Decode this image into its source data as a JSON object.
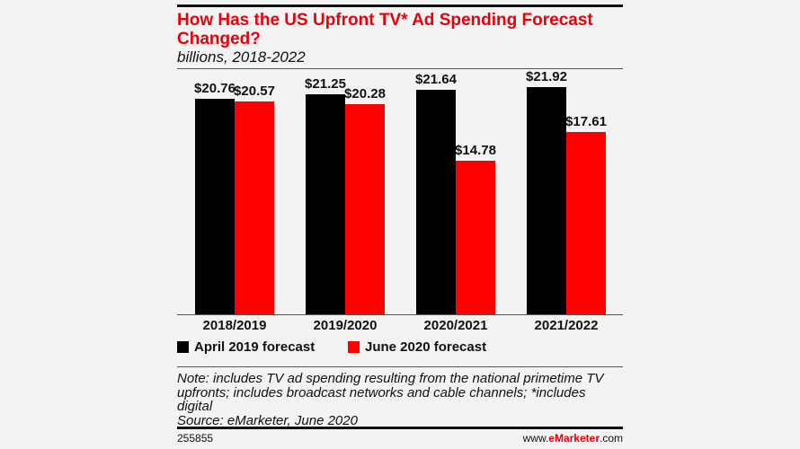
{
  "chart_data": {
    "type": "bar",
    "title": "How Has the US Upfront TV* Ad Spending Forecast Changed?",
    "subtitle": "billions, 2018-2022",
    "categories": [
      "2018/2019",
      "2019/2020",
      "2020/2021",
      "2021/2022"
    ],
    "series": [
      {
        "name": "April 2019 forecast",
        "color": "#000000",
        "values": [
          20.76,
          21.25,
          21.64,
          21.92
        ],
        "labels": [
          "$20.76",
          "$21.25",
          "$21.64",
          "$21.92"
        ]
      },
      {
        "name": "June 2020 forecast",
        "color": "#ff0000",
        "values": [
          20.57,
          20.28,
          14.78,
          17.61
        ],
        "labels": [
          "$20.57",
          "$20.28",
          "$14.78",
          "$17.61"
        ]
      }
    ],
    "ylim": [
      0,
      22
    ],
    "grid": false,
    "legend_position": "bottom-left",
    "xlabel": "",
    "ylabel": ""
  },
  "note": "Note: includes TV ad spending resulting from the national primetime TV upfronts; includes broadcast networks and cable channels; *includes digital",
  "source": "Source: eMarketer, June 2020",
  "footer": {
    "id": "255855",
    "site_prefix": "www.",
    "site_brand": "eMarketer",
    "site_suffix": ".com"
  }
}
